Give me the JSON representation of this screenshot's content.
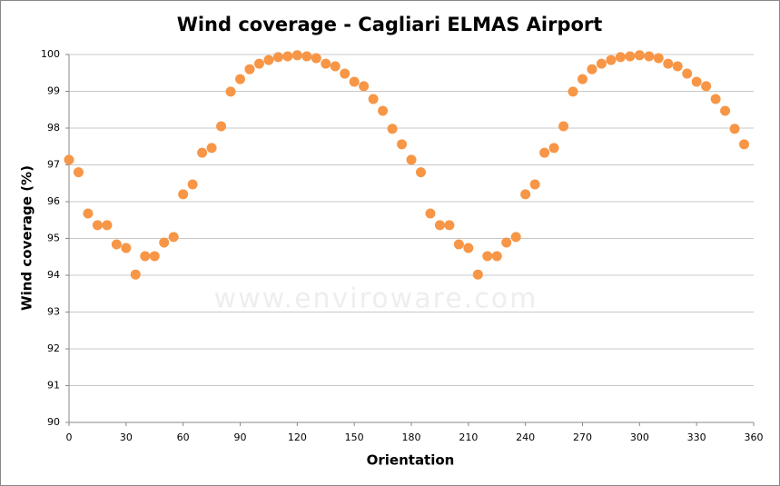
{
  "chart_data": {
    "type": "scatter",
    "title": "Wind coverage - Cagliari ELMAS Airport",
    "x_label": "Orientation",
    "y_label": "Wind coverage (%)",
    "watermark": "www.enviroware.com",
    "color": "#f79646",
    "grid": true,
    "xlim": [
      0,
      360
    ],
    "xticks": [
      0,
      30,
      60,
      90,
      120,
      150,
      180,
      210,
      240,
      270,
      300,
      330,
      360
    ],
    "ylim": [
      90,
      100
    ],
    "yticks": [
      90,
      91,
      92,
      93,
      94,
      95,
      96,
      97,
      98,
      99,
      100
    ],
    "x": [
      0,
      5,
      10,
      15,
      20,
      25,
      30,
      35,
      40,
      45,
      50,
      55,
      60,
      65,
      70,
      75,
      80,
      85,
      90,
      95,
      100,
      105,
      110,
      115,
      120,
      125,
      130,
      135,
      140,
      145,
      150,
      155,
      160,
      165,
      170,
      175,
      180,
      185,
      190,
      195,
      200,
      205,
      210,
      215,
      220,
      225,
      230,
      235,
      240,
      245,
      250,
      255,
      260,
      265,
      270,
      275,
      280,
      285,
      290,
      295,
      300,
      305,
      310,
      315,
      320,
      325,
      330,
      335,
      340,
      345,
      350,
      355
    ],
    "values": [
      97.14,
      96.8,
      95.68,
      95.36,
      95.36,
      94.84,
      94.74,
      94.02,
      94.52,
      94.52,
      94.89,
      95.04,
      96.2,
      96.47,
      97.33,
      97.46,
      98.05,
      98.99,
      99.33,
      99.6,
      99.75,
      99.85,
      99.93,
      99.95,
      99.98,
      99.95,
      99.9,
      99.75,
      99.68,
      99.48,
      99.26,
      99.14,
      98.79,
      98.47,
      97.98,
      97.56,
      97.14,
      96.8,
      95.68,
      95.36,
      95.36,
      94.84,
      94.74,
      94.02,
      94.52,
      94.52,
      94.89,
      95.04,
      96.2,
      96.47,
      97.33,
      97.46,
      98.05,
      98.99,
      99.33,
      99.6,
      99.75,
      99.85,
      99.93,
      99.95,
      99.98,
      99.95,
      99.9,
      99.75,
      99.68,
      99.48,
      99.26,
      99.14,
      98.79,
      98.47,
      97.98,
      97.56
    ]
  }
}
